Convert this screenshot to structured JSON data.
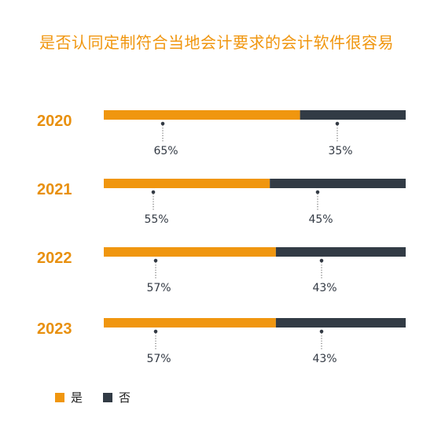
{
  "chart_data": {
    "type": "bar",
    "stacked": true,
    "orientation": "horizontal",
    "title": "是否认同定制符合当地会计要求的会计软件很容易",
    "categories": [
      "2020",
      "2021",
      "2022",
      "2023"
    ],
    "series": [
      {
        "name": "是",
        "values": [
          65,
          55,
          57,
          57
        ],
        "labels": [
          "65%",
          "55%",
          "57%",
          "57%"
        ]
      },
      {
        "name": "否",
        "values": [
          35,
          45,
          43,
          43
        ],
        "labels": [
          "35%",
          "45%",
          "43%",
          "43%"
        ]
      }
    ],
    "colors": {
      "是": "#f0960f",
      "否": "#323b45"
    },
    "legend_position": "bottom-left",
    "grid": false,
    "xlim": [
      0,
      100
    ]
  }
}
